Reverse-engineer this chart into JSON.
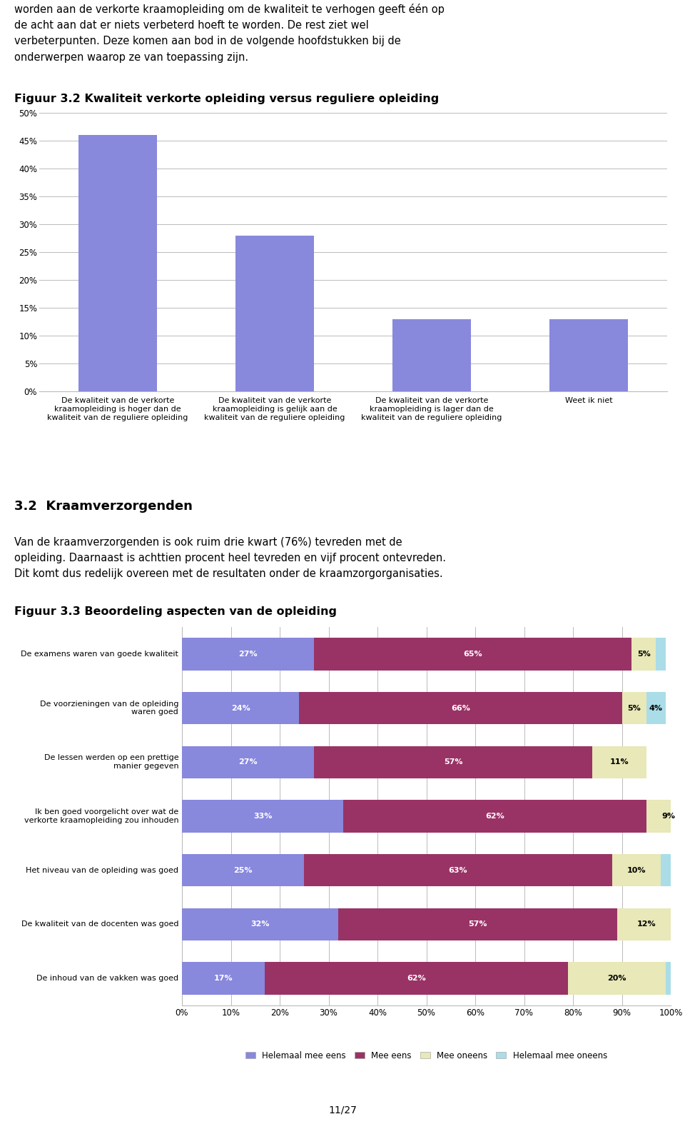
{
  "page_text_top": [
    "worden aan de verkorte kraamopleiding om de kwaliteit te verhogen geeft één op",
    "de acht aan dat er niets verbeterd hoeft te worden. De rest ziet wel",
    "verbeterpunten. Deze komen aan bod in de volgende hoofdstukken bij de",
    "onderwerpen waarop ze van toepassing zijn."
  ],
  "fig1_title": "Figuur 3.2 Kwaliteit verkorte opleiding versus reguliere opleiding",
  "fig1_categories": [
    "De kwaliteit van de verkorte\nkraamopleiding is hoger dan de\nkwaliteit van de reguliere opleiding",
    "De kwaliteit van de verkorte\nkraamopleiding is gelijk aan de\nkwaliteit van de reguliere opleiding",
    "De kwaliteit van de verkorte\nkraamopleiding is lager dan de\nkwaliteit van de reguliere opleiding",
    "Weet ik niet"
  ],
  "fig1_values": [
    0.46,
    0.28,
    0.13,
    0.13
  ],
  "fig1_bar_color": "#8888dd",
  "fig1_ylim": [
    0,
    0.5
  ],
  "fig1_yticks": [
    0.0,
    0.05,
    0.1,
    0.15,
    0.2,
    0.25,
    0.3,
    0.35,
    0.4,
    0.45,
    0.5
  ],
  "fig1_ytick_labels": [
    "0%",
    "5%",
    "10%",
    "15%",
    "20%",
    "25%",
    "30%",
    "35%",
    "40%",
    "45%",
    "50%"
  ],
  "section_title": "3.2  Kraamverzorgenden",
  "section_text": [
    "Van de kraamverzorgenden is ook ruim drie kwart (76%) tevreden met de",
    "opleiding. Daarnaast is achttien procent heel tevreden en vijf procent ontevreden.",
    "Dit komt dus redelijk overeen met de resultaten onder de kraamzorgorganisaties."
  ],
  "fig2_title": "Figuur 3.3 Beoordeling aspecten van de opleiding",
  "fig2_categories": [
    "De examens waren van goede kwaliteit",
    "De voorzieningen van de opleiding\nwaren goed",
    "De lessen werden op een prettige\nmanier gegeven",
    "Ik ben goed voorgelicht over wat de\nverkorte kraamopleiding zou inhouden",
    "Het niveau van de opleiding was goed",
    "De kwaliteit van de docenten was goed",
    "De inhoud van de vakken was goed"
  ],
  "fig2_data": {
    "Helemaal mee eens": [
      27,
      24,
      27,
      33,
      25,
      32,
      17
    ],
    "Mee eens": [
      65,
      66,
      57,
      62,
      63,
      57,
      62
    ],
    "Mee oneens": [
      5,
      5,
      11,
      9,
      10,
      12,
      20
    ],
    "Helemaal mee oneens": [
      2,
      4,
      0,
      2,
      2,
      0,
      1
    ]
  },
  "fig2_colors": {
    "Helemaal mee eens": "#8888dd",
    "Mee eens": "#993366",
    "Mee oneens": "#e8e8b8",
    "Helemaal mee oneens": "#aadde8"
  },
  "fig2_xlim": [
    0,
    100
  ],
  "fig2_xticks": [
    0,
    10,
    20,
    30,
    40,
    50,
    60,
    70,
    80,
    90,
    100
  ],
  "fig2_xtick_labels": [
    "0%",
    "10%",
    "20%",
    "30%",
    "40%",
    "50%",
    "60%",
    "70%",
    "80%",
    "90%",
    "100%"
  ],
  "page_number": "11/27",
  "bg_color": "#ffffff",
  "text_color": "#000000",
  "grid_color": "#bbbbbb"
}
